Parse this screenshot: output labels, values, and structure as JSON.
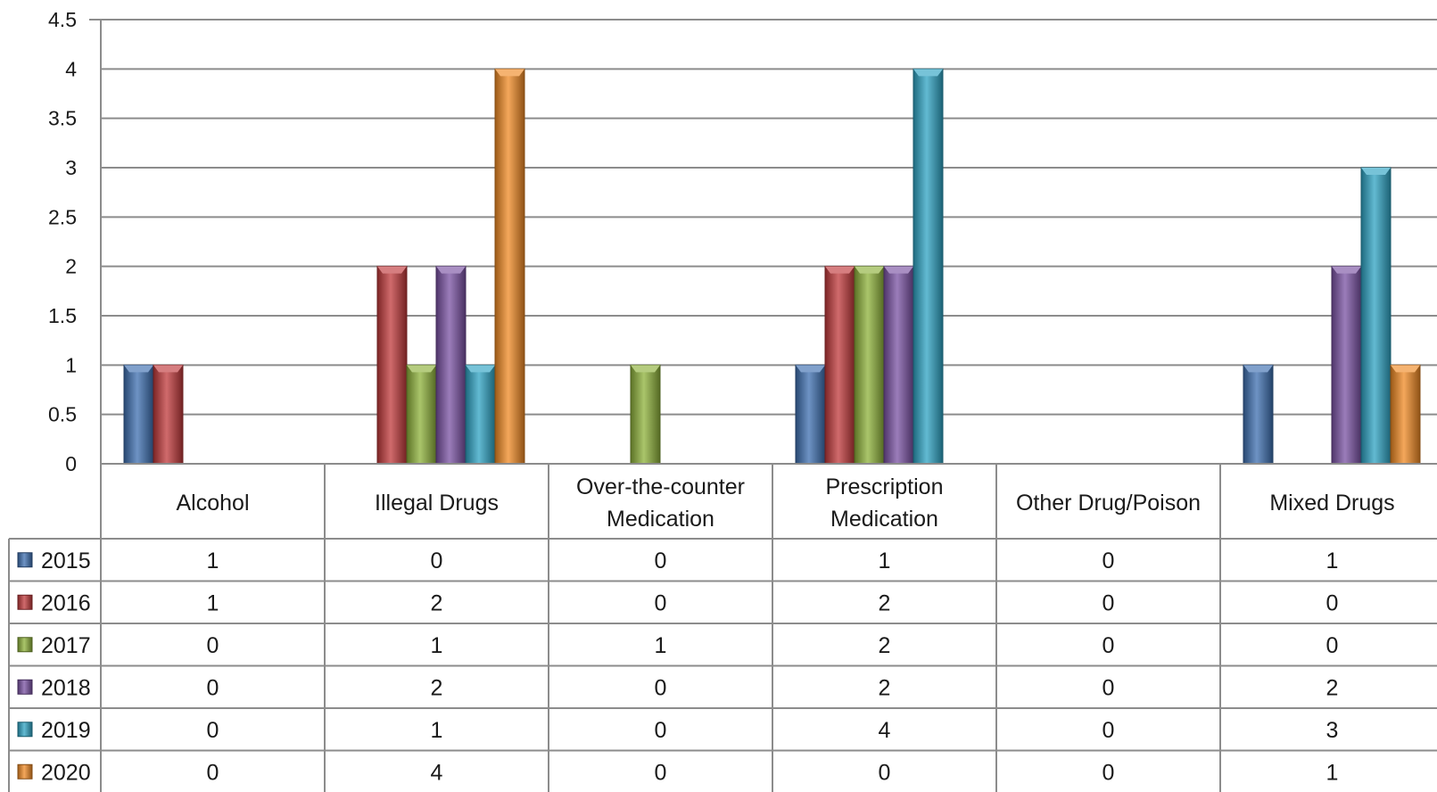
{
  "chart_data": {
    "type": "bar",
    "categories": [
      "Alcohol",
      "Illegal Drugs",
      "Over-the-counter Medication",
      "Prescription Medication",
      "Other Drug/Poison",
      "Mixed Drugs"
    ],
    "category_lines": [
      [
        "Alcohol"
      ],
      [
        "Illegal Drugs"
      ],
      [
        "Over-the-counter",
        "Medication"
      ],
      [
        "Prescription",
        "Medication"
      ],
      [
        "Other Drug/Poison"
      ],
      [
        "Mixed Drugs"
      ]
    ],
    "series": [
      {
        "name": "2015",
        "color": "#3d6fb0",
        "values": [
          1,
          0,
          0,
          1,
          0,
          1
        ]
      },
      {
        "name": "2016",
        "color": "#c0393b",
        "values": [
          1,
          2,
          0,
          2,
          0,
          0
        ]
      },
      {
        "name": "2017",
        "color": "#8db13a",
        "values": [
          0,
          1,
          1,
          2,
          0,
          0
        ]
      },
      {
        "name": "2018",
        "color": "#7a52a3",
        "values": [
          0,
          2,
          0,
          2,
          0,
          2
        ]
      },
      {
        "name": "2019",
        "color": "#2ea3c3",
        "values": [
          0,
          1,
          0,
          4,
          0,
          3
        ]
      },
      {
        "name": "2020",
        "color": "#f08a24",
        "values": [
          0,
          4,
          0,
          0,
          0,
          1
        ]
      }
    ],
    "ylim": [
      0,
      4.5
    ],
    "yticks": [
      "0",
      "0.5",
      "1",
      "1.5",
      "2",
      "2.5",
      "3",
      "3.5",
      "4",
      "4.5"
    ],
    "grid": true,
    "legend": "data-table"
  }
}
